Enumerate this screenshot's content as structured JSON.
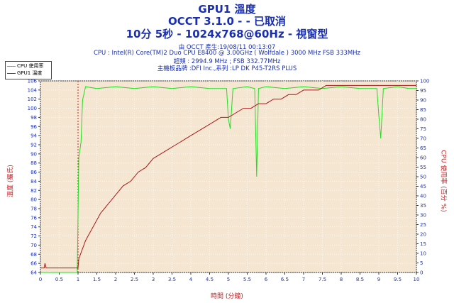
{
  "titles": {
    "line1": "GPU1 溫度",
    "line2": "OCCT 3.1.0 -  - 已取消",
    "line3": "10分 5秒 - 1024x768@60Hz - 視窗型"
  },
  "info": {
    "line1": "由 OCCT 產生:19/08/11 00:13:07",
    "line2": "CPU : Intel(R) Core(TM)2 Duo CPU E8400 @ 3.00GHz ( Wolfdale ) 3000 MHz FSB 333MHz",
    "line3": "超頻 : 2994.9 MHz ; FSB 332.77MHz",
    "line4": "主機板品牌 :DFI Inc.,系列 :LP DK P45-T2RS PLUS"
  },
  "chart_data": {
    "type": "line",
    "xlabel": "時間 (分鐘)",
    "ylabel_left": "溫度 (攝氏)",
    "ylabel_right": "CPU 使用率 (百分 %)",
    "xlim": [
      0,
      10
    ],
    "ylim_left": [
      64,
      106
    ],
    "ylim_right": [
      0,
      100
    ],
    "x_ticks": [
      "0",
      "0.5",
      "1",
      "1.5",
      "2",
      "2.5",
      "3",
      "3.5",
      "4",
      "4.5",
      "5",
      "5.5",
      "6",
      "6.5",
      "7",
      "7.5",
      "8",
      "8.5",
      "9",
      "9.5",
      "10"
    ],
    "y_ticks_left": [
      "64",
      "66",
      "68",
      "70",
      "72",
      "74",
      "76",
      "78",
      "80",
      "82",
      "84",
      "86",
      "88",
      "90",
      "92",
      "94",
      "96",
      "98",
      "100",
      "102",
      "104",
      "106"
    ],
    "y_ticks_right": [
      "0",
      "5",
      "10",
      "15",
      "20",
      "25",
      "30",
      "35",
      "40",
      "45",
      "50",
      "55",
      "60",
      "65",
      "70",
      "75",
      "80",
      "85",
      "90",
      "95",
      "100"
    ],
    "grid": true,
    "vertical_marker_x": 1,
    "legend_position": "top-left",
    "colors": {
      "cpu": "#22dd22",
      "gpu": "#aa1818",
      "background": "#f5e6d2",
      "marker": "#cc2222"
    },
    "series": [
      {
        "name": "CPU 使用率",
        "axis": "right",
        "points": [
          [
            0,
            0
          ],
          [
            0.98,
            0
          ],
          [
            1.02,
            60
          ],
          [
            1.08,
            68
          ],
          [
            1.12,
            90
          ],
          [
            1.2,
            97
          ],
          [
            1.5,
            96
          ],
          [
            2,
            97
          ],
          [
            2.5,
            96
          ],
          [
            3,
            97
          ],
          [
            3.5,
            96
          ],
          [
            4,
            97
          ],
          [
            4.5,
            96
          ],
          [
            4.95,
            96
          ],
          [
            5.0,
            80
          ],
          [
            5.05,
            75
          ],
          [
            5.12,
            96
          ],
          [
            5.5,
            97
          ],
          [
            5.7,
            96
          ],
          [
            5.75,
            50
          ],
          [
            5.8,
            96
          ],
          [
            6,
            97
          ],
          [
            6.5,
            96
          ],
          [
            7,
            97
          ],
          [
            7.5,
            96
          ],
          [
            8,
            97
          ],
          [
            8.5,
            96
          ],
          [
            8.95,
            96
          ],
          [
            9.0,
            82
          ],
          [
            9.05,
            70
          ],
          [
            9.12,
            96
          ],
          [
            9.5,
            97
          ],
          [
            9.8,
            96
          ],
          [
            10,
            96
          ]
        ]
      },
      {
        "name": "GPU1 溫度",
        "axis": "left",
        "points": [
          [
            0,
            65
          ],
          [
            0.1,
            65
          ],
          [
            0.12,
            66
          ],
          [
            0.15,
            65
          ],
          [
            1,
            65
          ],
          [
            1.02,
            67
          ],
          [
            1.2,
            71
          ],
          [
            1.4,
            74
          ],
          [
            1.6,
            77
          ],
          [
            1.8,
            79
          ],
          [
            2,
            81
          ],
          [
            2.2,
            83
          ],
          [
            2.4,
            84
          ],
          [
            2.6,
            86
          ],
          [
            2.8,
            87
          ],
          [
            3,
            89
          ],
          [
            3.2,
            90
          ],
          [
            3.4,
            91
          ],
          [
            3.6,
            92
          ],
          [
            3.8,
            93
          ],
          [
            4,
            94
          ],
          [
            4.2,
            95
          ],
          [
            4.4,
            96
          ],
          [
            4.6,
            97
          ],
          [
            4.8,
            98
          ],
          [
            5,
            98
          ],
          [
            5.2,
            99
          ],
          [
            5.4,
            100
          ],
          [
            5.6,
            100
          ],
          [
            5.8,
            101
          ],
          [
            6,
            101
          ],
          [
            6.2,
            102
          ],
          [
            6.4,
            102
          ],
          [
            6.6,
            103
          ],
          [
            6.8,
            103
          ],
          [
            7,
            104
          ],
          [
            7.2,
            104
          ],
          [
            7.4,
            104
          ],
          [
            7.6,
            105
          ],
          [
            7.8,
            105
          ],
          [
            8,
            105
          ],
          [
            8.2,
            105
          ],
          [
            8.4,
            105
          ],
          [
            8.6,
            105
          ],
          [
            8.8,
            105
          ],
          [
            9,
            105
          ],
          [
            9.2,
            105
          ],
          [
            9.4,
            105
          ],
          [
            9.6,
            105
          ],
          [
            9.8,
            105
          ],
          [
            10,
            105
          ]
        ]
      }
    ]
  }
}
